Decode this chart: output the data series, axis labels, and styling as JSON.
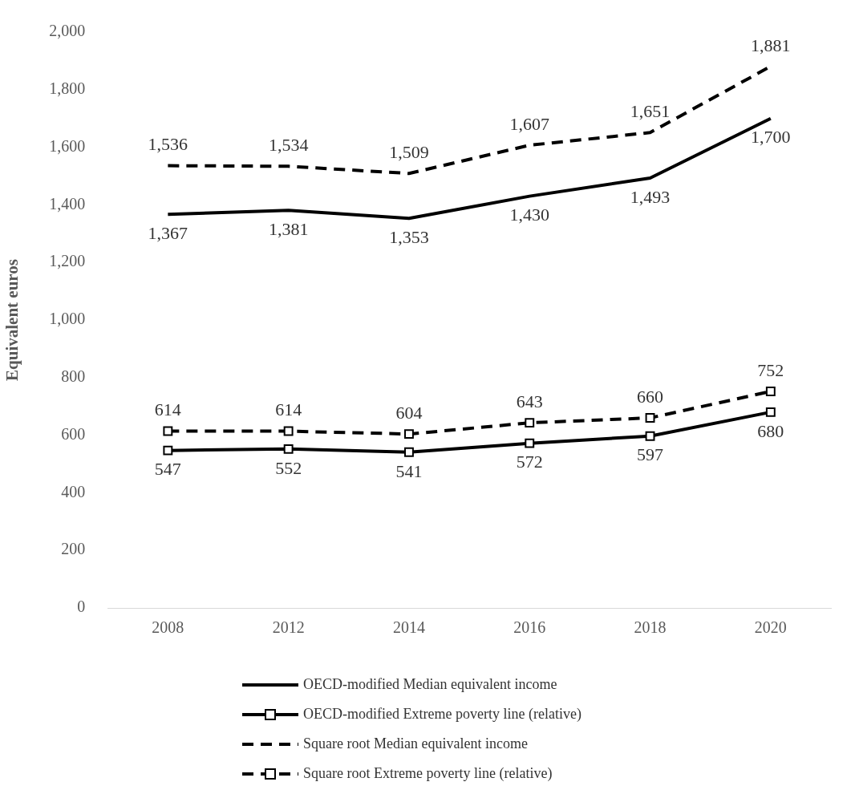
{
  "chart_data": {
    "type": "line",
    "ylabel": "Equivalent euros",
    "categories": [
      "2008",
      "2012",
      "2014",
      "2016",
      "2018",
      "2020"
    ],
    "series": [
      {
        "name": "OECD-modified Median equivalent income",
        "color": "#000000",
        "line_style": "solid",
        "marker": "none",
        "values": [
          1367,
          1381,
          1353,
          1430,
          1493,
          1700
        ],
        "value_labels": [
          "1,367",
          "1,381",
          "1,353",
          "1,430",
          "1,493",
          "1,700"
        ]
      },
      {
        "name": "OECD-modified Extreme poverty line (relative)",
        "color": "#000000",
        "line_style": "solid",
        "marker": "square",
        "values": [
          547,
          552,
          541,
          572,
          597,
          680
        ]
      },
      {
        "name": "Square root Median equivalent income",
        "color": "#000000",
        "line_style": "dashed",
        "marker": "none",
        "values": [
          1536,
          1534,
          1509,
          1607,
          1651,
          1881
        ],
        "value_labels": [
          "1,536",
          "1,534",
          "1,509",
          "1,607",
          "1,651",
          "1,881"
        ]
      },
      {
        "name": "Square root Extreme poverty line (relative)",
        "color": "#000000",
        "line_style": "dashed",
        "marker": "square",
        "values": [
          614,
          614,
          604,
          643,
          660,
          752
        ]
      }
    ],
    "ylim": [
      0,
      2000
    ],
    "yticks": [
      0,
      200,
      400,
      600,
      800,
      {
        "value": 1000,
        "label": "1,000"
      },
      {
        "value": 1200,
        "label": "1,200"
      },
      {
        "value": 1400,
        "label": "1,400"
      },
      {
        "value": 1600,
        "label": "1,600"
      },
      {
        "value": 1800,
        "label": "1,800"
      },
      {
        "value": 2000,
        "label": "2,000"
      }
    ],
    "grid": false,
    "legend": "bottom",
    "data_labels": true
  }
}
